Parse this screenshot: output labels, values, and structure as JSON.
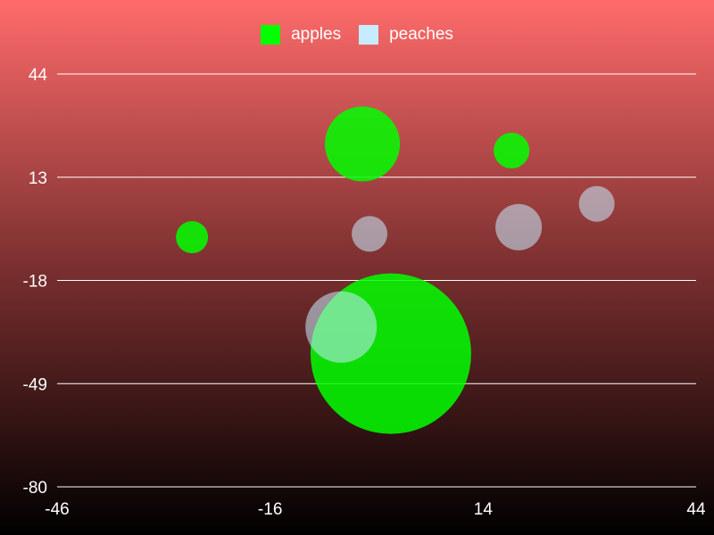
{
  "chart_data": {
    "type": "scatter",
    "bubble": true,
    "xlim": [
      -46,
      44
    ],
    "ylim": [
      -80,
      44
    ],
    "x_ticks": [
      -46,
      -16,
      14,
      44
    ],
    "y_ticks": [
      -80,
      -49,
      -18,
      13,
      44
    ],
    "grid": {
      "horizontal": true,
      "vertical": false
    },
    "legend_position": "top-center",
    "colors": {
      "apples": "#00ff00",
      "peaches": "#c6ecff",
      "grid": "#ffffff",
      "text": "#ffffff"
    },
    "series": [
      {
        "name": "apples",
        "color": "#00ff00",
        "points": [
          {
            "x": -3,
            "y": 23,
            "size": 42
          },
          {
            "x": 18,
            "y": 21,
            "size": 20
          },
          {
            "x": -27,
            "y": -5,
            "size": 18
          },
          {
            "x": 1,
            "y": -40,
            "size": 90
          }
        ]
      },
      {
        "name": "peaches",
        "color": "#c6ecff",
        "points": [
          {
            "x": 30,
            "y": 5,
            "size": 20
          },
          {
            "x": 19,
            "y": -2,
            "size": 26
          },
          {
            "x": -2,
            "y": -4,
            "size": 20
          },
          {
            "x": -6,
            "y": -32,
            "size": 40
          }
        ]
      }
    ]
  }
}
